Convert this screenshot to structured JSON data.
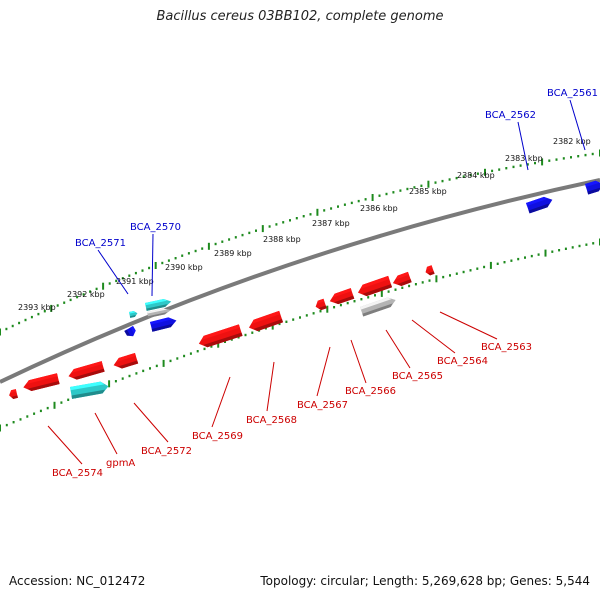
{
  "title": "Bacillus cereus 03BB102, complete genome",
  "footer": {
    "accession": "Accession: NC_012472",
    "summary": "Topology: circular; Length: 5,269,628 bp; Genes: 5,544"
  },
  "colors": {
    "forward_gene": "#1010e0",
    "reverse_gene": "#ee1111",
    "rna": "#2ec8c8",
    "pseudo": "#b4b4b4",
    "backbone": "#7a7a7a",
    "track_dots": "#1e8a1e",
    "forward_label": "#0000cc",
    "reverse_label": "#cc0000"
  },
  "scale_labels": [
    "2393 kbp",
    "2392 kbp",
    "2391 kbp",
    "2390 kbp",
    "2389 kbp",
    "2388 kbp",
    "2387 kbp",
    "2386 kbp",
    "2385 kbp",
    "2384 kbp",
    "2383 kbp",
    "2382 kbp"
  ],
  "forward_gene_labels": [
    "BCA_2571",
    "BCA_2570",
    "BCA_2562",
    "BCA_2561"
  ],
  "reverse_gene_labels": [
    "BCA_2574",
    "gpmA",
    "BCA_2572",
    "BCA_2569",
    "BCA_2568",
    "BCA_2567",
    "BCA_2566",
    "BCA_2565",
    "BCA_2564",
    "BCA_2563"
  ]
}
